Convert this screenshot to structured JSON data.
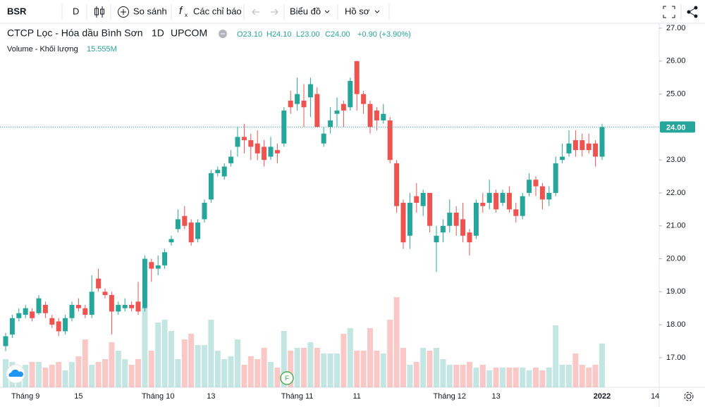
{
  "toolbar": {
    "symbol": "BSR",
    "interval": "D",
    "compare": "So sánh",
    "indicators": "Các chỉ báo",
    "chart_menu": "Biểu đồ",
    "profile_menu": "Hồ sơ"
  },
  "chart_data": {
    "type": "candlestick",
    "title": "CTCP Lọc - Hóa dầu Bình Sơn",
    "interval": "1D",
    "exchange": "UPCOM",
    "ohlc_labels": {
      "open": "O23.10",
      "high": "H24.10",
      "low": "L23.00",
      "close": "C24.00",
      "change": "+0.90 (+3.90%)"
    },
    "event_marker": "F",
    "categories": [
      null,
      null,
      null,
      "Tháng 9",
      null,
      null,
      null,
      null,
      null,
      null,
      null,
      "15",
      null,
      null,
      null,
      null,
      null,
      null,
      null,
      null,
      null,
      null,
      null,
      "Tháng 10",
      null,
      null,
      null,
      null,
      null,
      null,
      null,
      "13",
      null,
      null,
      null,
      null,
      null,
      null,
      null,
      null,
      null,
      null,
      null,
      null,
      "Tháng 11",
      null,
      null,
      null,
      null,
      null,
      null,
      null,
      null,
      "11",
      null,
      null,
      null,
      null,
      null,
      null,
      null,
      null,
      null,
      null,
      null,
      null,
      null,
      "Tháng 12",
      null,
      null,
      null,
      null,
      null,
      null,
      "13",
      null,
      null,
      null,
      null,
      null,
      null,
      null,
      null,
      null,
      null,
      null,
      null,
      null,
      null,
      null,
      "2022",
      null,
      null,
      null,
      null,
      null,
      null,
      null,
      "14"
    ],
    "open": [
      17.35,
      17.7,
      18.2,
      18.3,
      18.4,
      18.35,
      18.6,
      18.2,
      18.1,
      17.8,
      18.2,
      18.6,
      18.5,
      18.3,
      19.4,
      19.0,
      18.9,
      18.4,
      18.5,
      18.6,
      18.7,
      18.5,
      19.9,
      19.7,
      19.8,
      20.5,
      20.9,
      21.3,
      21.1,
      20.6,
      21.2,
      21.8,
      22.6,
      22.5,
      22.9,
      23.4,
      23.7,
      23.6,
      23.5,
      23.4,
      23.1,
      23.3,
      23.5,
      24.8,
      24.7,
      24.8,
      24.9,
      25.0,
      23.5,
      24.0,
      24.4,
      24.7,
      24.6,
      26.0,
      25.0,
      24.7,
      24.5,
      24.2,
      24.2,
      22.9,
      21.7,
      20.7,
      21.9,
      21.6,
      22.0,
      20.5,
      20.8,
      21.0,
      21.4,
      21.2,
      20.8,
      20.7,
      21.7,
      21.7,
      22.0,
      21.7,
      22.0,
      21.5,
      21.3,
      22.0,
      22.4,
      22.2,
      21.8,
      22.0,
      23.0,
      23.2,
      23.6,
      23.6,
      23.5,
      23.5,
      23.1,
      null,
      null,
      null,
      null,
      null,
      null,
      null,
      null
    ],
    "high": [
      17.75,
      18.3,
      18.5,
      18.6,
      18.5,
      18.9,
      18.7,
      18.3,
      18.2,
      18.3,
      18.7,
      18.8,
      18.6,
      19.5,
      19.7,
      19.1,
      19.0,
      18.7,
      18.8,
      18.7,
      19.3,
      20.1,
      20.0,
      20.1,
      20.3,
      20.7,
      21.5,
      21.6,
      21.2,
      21.2,
      21.8,
      22.7,
      22.8,
      22.9,
      23.3,
      24.0,
      24.1,
      23.8,
      23.9,
      23.6,
      23.7,
      23.5,
      24.6,
      25.1,
      25.5,
      25.3,
      25.5,
      25.2,
      24.0,
      24.6,
      24.9,
      24.8,
      25.5,
      26.0,
      25.1,
      24.8,
      24.6,
      24.7,
      24.3,
      23.0,
      21.8,
      22.0,
      22.3,
      22.1,
      22.0,
      21.0,
      21.2,
      21.8,
      21.6,
      21.7,
      20.9,
      21.8,
      22.0,
      22.4,
      22.1,
      22.1,
      22.2,
      21.7,
      22.0,
      22.6,
      22.5,
      22.3,
      22.2,
      23.1,
      23.5,
      23.9,
      23.9,
      23.8,
      23.8,
      23.6,
      24.1,
      null,
      null,
      null,
      null,
      null,
      null,
      null,
      null
    ],
    "low": [
      17.2,
      17.6,
      18.1,
      18.2,
      18.1,
      18.3,
      18.2,
      17.9,
      17.65,
      17.7,
      18.1,
      18.4,
      18.2,
      18.2,
      19.0,
      18.8,
      17.7,
      18.3,
      18.4,
      18.4,
      18.3,
      18.4,
      19.3,
      19.5,
      19.7,
      20.4,
      20.8,
      20.9,
      20.4,
      20.5,
      21.1,
      21.7,
      22.5,
      22.4,
      22.8,
      23.1,
      23.2,
      23.0,
      23.0,
      22.8,
      23.0,
      22.9,
      23.4,
      24.4,
      24.5,
      24.0,
      24.3,
      24.0,
      23.4,
      23.8,
      24.0,
      24.0,
      24.5,
      24.5,
      24.4,
      23.8,
      23.9,
      24.1,
      22.9,
      21.4,
      20.3,
      20.3,
      21.4,
      21.3,
      20.8,
      19.6,
      20.5,
      20.8,
      20.7,
      20.5,
      20.1,
      20.6,
      21.4,
      21.5,
      21.4,
      21.6,
      21.4,
      21.1,
      21.2,
      21.9,
      21.9,
      21.5,
      21.6,
      21.9,
      22.9,
      23.1,
      23.1,
      23.1,
      23.2,
      22.8,
      23.0,
      null,
      null,
      null,
      null,
      null,
      null,
      null,
      null
    ],
    "close": [
      17.65,
      18.2,
      18.35,
      18.5,
      18.2,
      18.8,
      18.35,
      18.0,
      17.8,
      18.2,
      18.6,
      18.5,
      18.3,
      19.0,
      19.1,
      18.9,
      18.4,
      18.6,
      18.6,
      18.5,
      18.4,
      20.0,
      19.7,
      19.8,
      20.2,
      20.6,
      21.2,
      21.0,
      20.5,
      21.1,
      21.7,
      22.6,
      22.7,
      22.8,
      23.1,
      23.7,
      23.6,
      23.4,
      23.2,
      23.0,
      23.4,
      23.2,
      24.5,
      24.6,
      25.0,
      24.6,
      25.3,
      24.0,
      23.8,
      24.2,
      24.5,
      24.5,
      25.4,
      25.0,
      24.7,
      24.0,
      24.2,
      24.4,
      23.0,
      21.6,
      20.5,
      21.7,
      21.7,
      22.0,
      21.0,
      20.7,
      21.0,
      21.4,
      21.0,
      20.7,
      20.5,
      21.7,
      21.6,
      22.0,
      21.5,
      22.0,
      21.5,
      21.3,
      21.9,
      22.4,
      22.2,
      21.8,
      22.0,
      22.9,
      23.1,
      23.5,
      23.3,
      23.3,
      23.3,
      23.1,
      24.0,
      null,
      null,
      null,
      null,
      null,
      null,
      null,
      null
    ],
    "volume": {
      "name": "Volume - Khối lượng",
      "last_label": "15.555M",
      "values": [
        10,
        9,
        7,
        8,
        9,
        9,
        7,
        8,
        9,
        6,
        9,
        11,
        17,
        8,
        9,
        10,
        16,
        13,
        10,
        8,
        10,
        28,
        13,
        23,
        24,
        20,
        10,
        17,
        19,
        15,
        15,
        24,
        13,
        10,
        11,
        17,
        8,
        11,
        10,
        14,
        9,
        7,
        20,
        13,
        14,
        14,
        16,
        14,
        12,
        12,
        12,
        19,
        21,
        13,
        13,
        21,
        13,
        12,
        24,
        32,
        14,
        8,
        9,
        14,
        13,
        14,
        10,
        8,
        8,
        8,
        9,
        7,
        8,
        6,
        7,
        7,
        7,
        7,
        7,
        6,
        7,
        6,
        7,
        22,
        8,
        8,
        12,
        8,
        7,
        8,
        15.555,
        null,
        null,
        null,
        null,
        null,
        null,
        null,
        null
      ],
      "up_color": "rgba(38,166,154,0.28)",
      "down_color": "rgba(239,83,80,0.32)"
    },
    "ylim": [
      16.1,
      27.15
    ],
    "yticks": [
      {
        "value": 17,
        "label": "17.00"
      },
      {
        "value": 18,
        "label": "18.00"
      },
      {
        "value": 19,
        "label": "19.00"
      },
      {
        "value": 20,
        "label": "20.00"
      },
      {
        "value": 21,
        "label": "21.00"
      },
      {
        "value": 22,
        "label": "22.00"
      },
      {
        "value": 23,
        "label": "23.00"
      },
      {
        "value": 24,
        "label": "24.00"
      },
      {
        "value": 25,
        "label": "25.00"
      },
      {
        "value": 26,
        "label": "26.00"
      },
      {
        "value": 27,
        "label": "27.00"
      }
    ],
    "last_price": {
      "value": 24,
      "label": "24.00"
    },
    "up_color": "#26a69a",
    "down_color": "#ef5350"
  }
}
